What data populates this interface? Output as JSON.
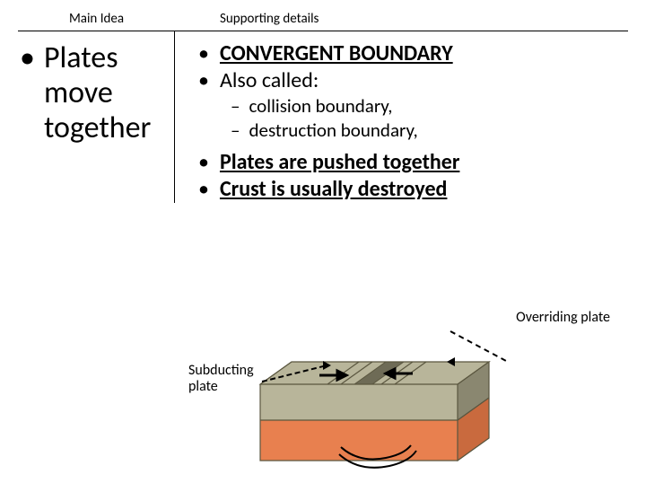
{
  "header": {
    "left": "Main Idea",
    "right": "Supporting details"
  },
  "main_idea": {
    "text": "Plates move together",
    "fontsize": 34
  },
  "supporting": {
    "l1": [
      {
        "text": "CONVERGENT BOUNDARY",
        "bold": true,
        "underline": true
      },
      {
        "text": "Also called:",
        "bold": false,
        "underline": false
      }
    ],
    "l2": [
      {
        "text": "collision boundary,"
      },
      {
        "text": "destruction boundary,"
      }
    ],
    "l1b": [
      {
        "text": "Plates are pushed together",
        "bold": true,
        "underline": true
      },
      {
        "text": "Crust is usually destroyed",
        "bold": true,
        "underline": true
      }
    ]
  },
  "diagram": {
    "label_overriding": "Overriding plate",
    "label_subducting": "Subducting\nplate",
    "colors": {
      "crust_top": "#b8b59a",
      "crust_side": "#8a8770",
      "mantle_front": "#e8804f",
      "mantle_side": "#c96a3e",
      "edge": "#5a563f",
      "trench_shadow": "#6e6b56"
    }
  }
}
